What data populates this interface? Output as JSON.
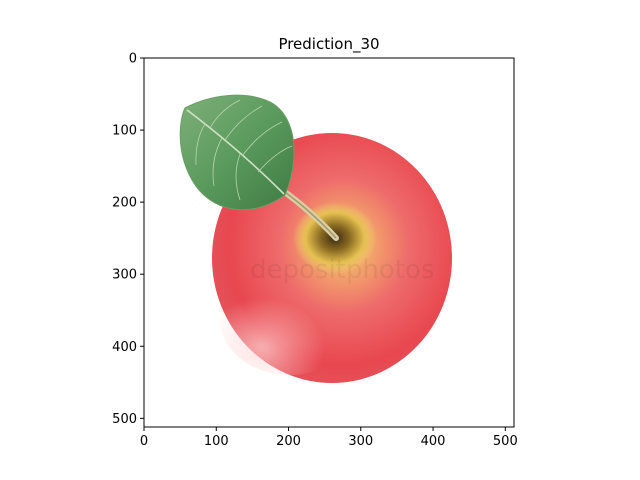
{
  "figure": {
    "title": "Prediction_30"
  },
  "image": {
    "description_icon": "apple-with-leaf-image",
    "watermark_text": "depositphotos",
    "colors": {
      "apple_red": "#e8474f",
      "apple_light": "#f4a0a0",
      "apple_core": "#e8c85a",
      "leaf_green": "#5a9a5c",
      "leaf_dark": "#3f7a44"
    }
  },
  "axes": {
    "x": {
      "ticks": [
        0,
        100,
        200,
        300,
        400,
        500
      ],
      "range": [
        0,
        512
      ]
    },
    "y": {
      "ticks": [
        0,
        100,
        200,
        300,
        400,
        500
      ],
      "range": [
        0,
        512
      ],
      "inverted": true
    }
  }
}
